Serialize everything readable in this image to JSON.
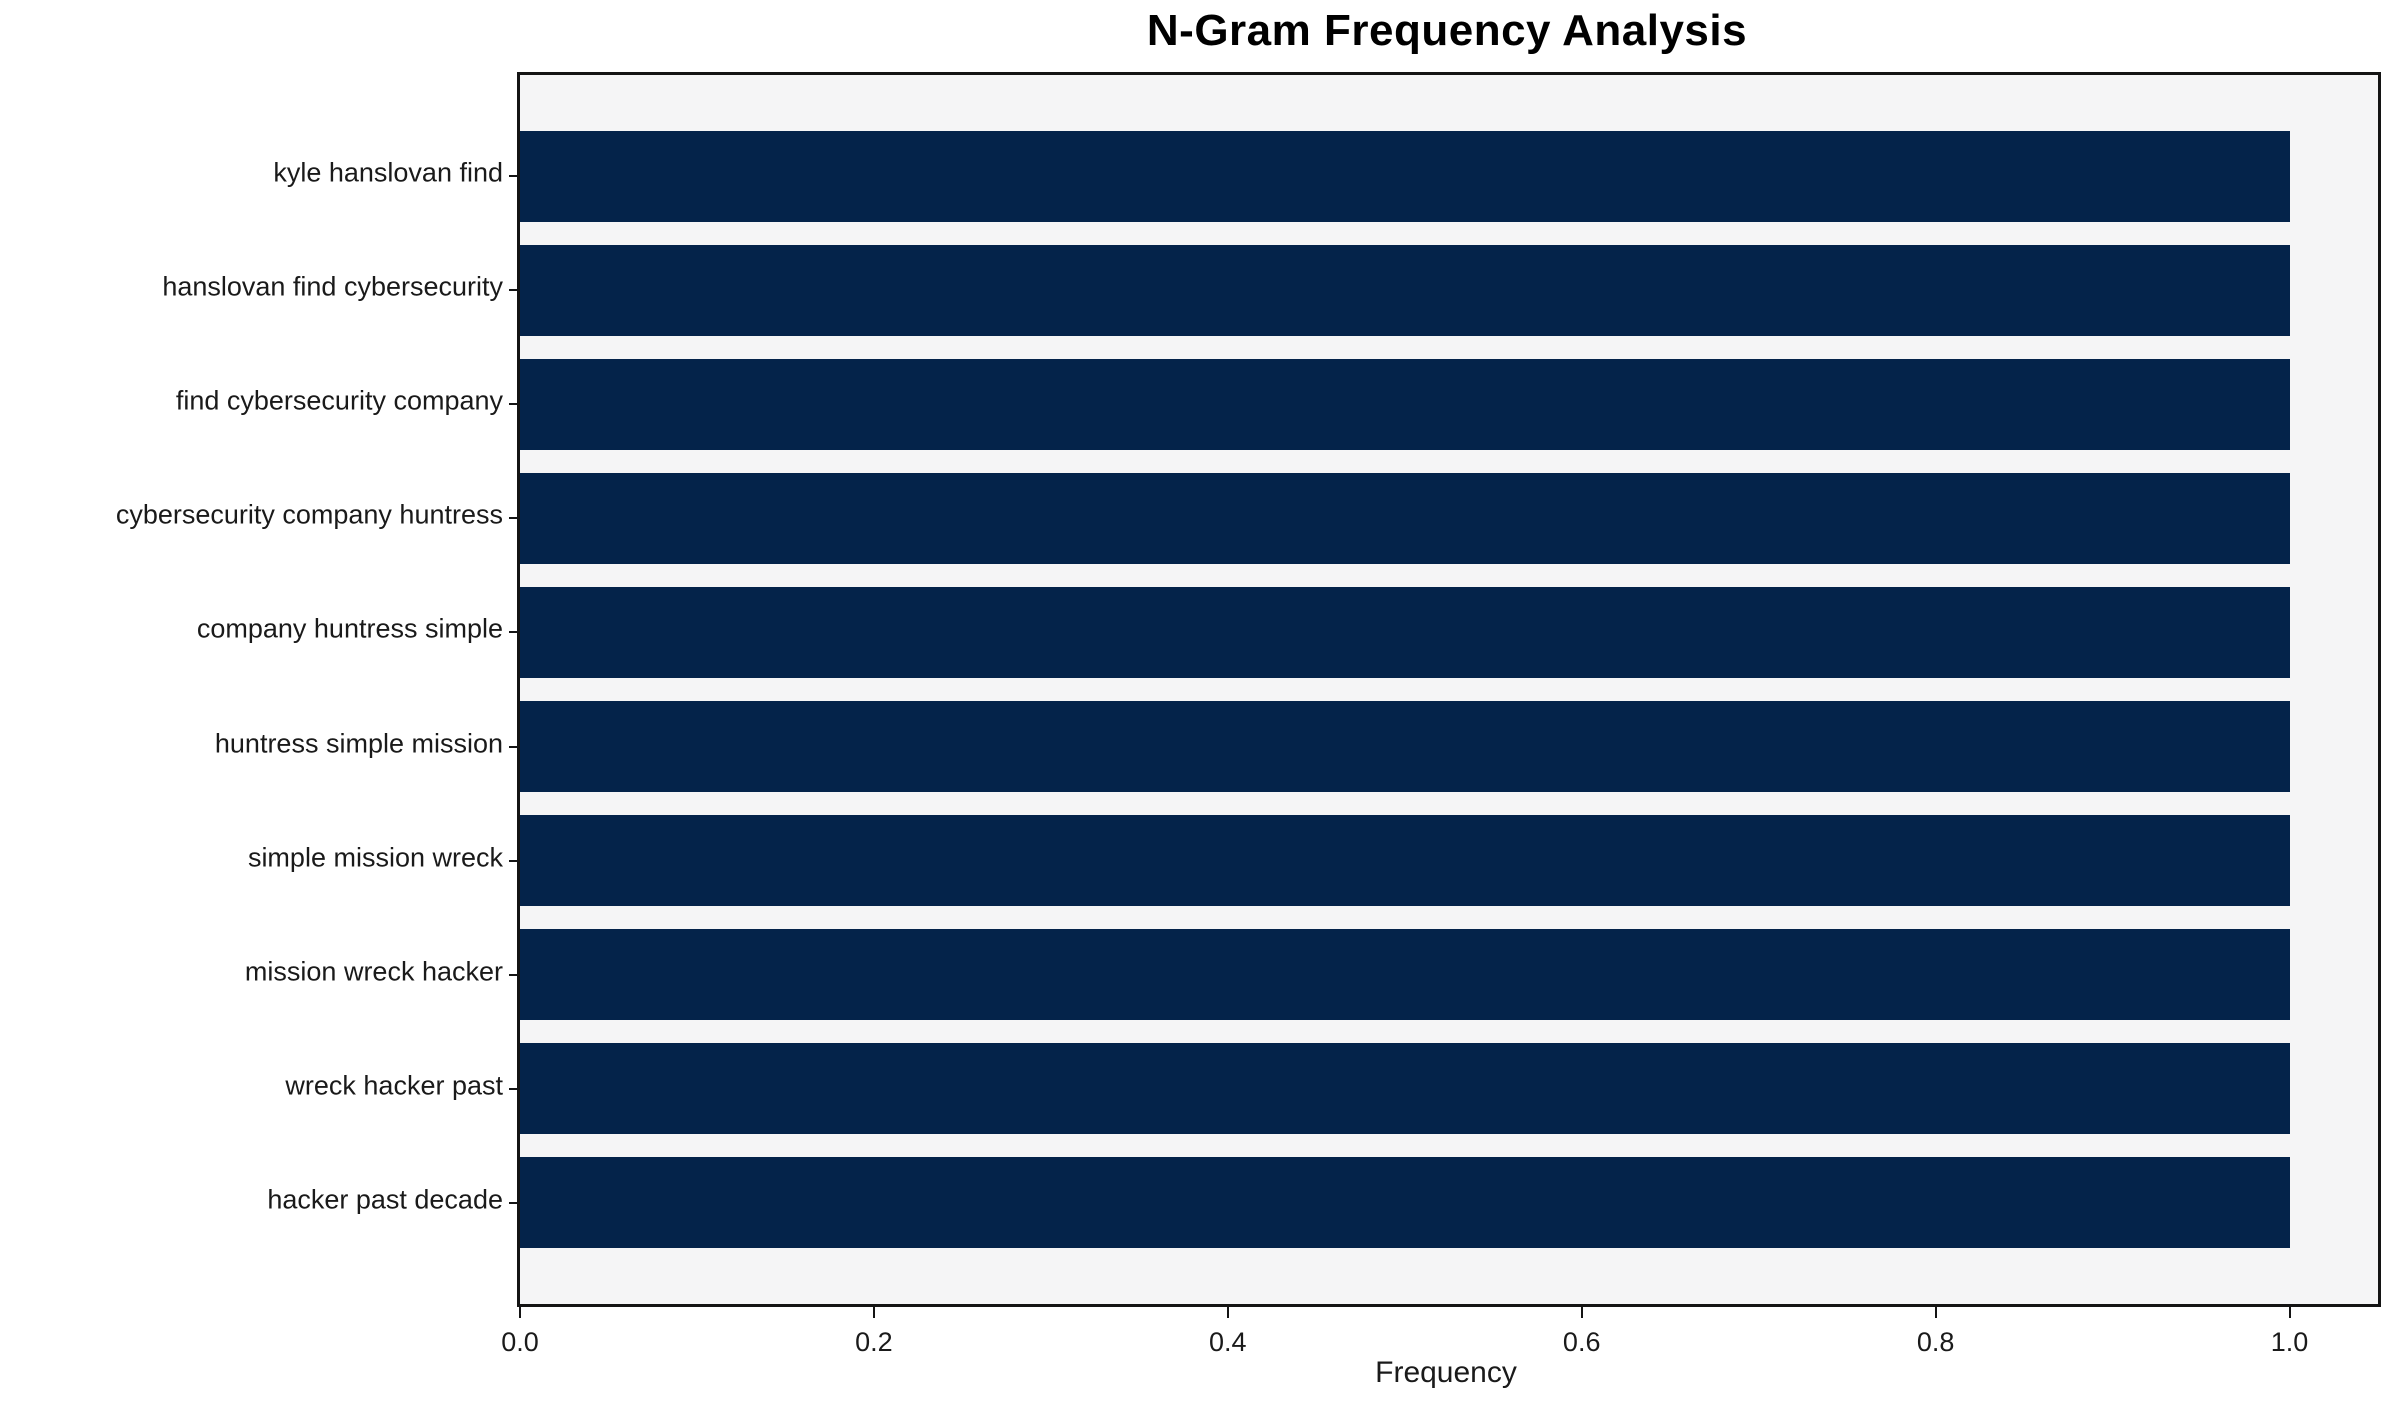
{
  "chart_data": {
    "type": "bar",
    "orientation": "horizontal",
    "title": "N-Gram Frequency Analysis",
    "xlabel": "Frequency",
    "ylabel": "",
    "categories": [
      "kyle hanslovan find",
      "hanslovan find cybersecurity",
      "find cybersecurity company",
      "cybersecurity company huntress",
      "company huntress simple",
      "huntress simple mission",
      "simple mission wreck",
      "mission wreck hacker",
      "wreck hacker past",
      "hacker past decade"
    ],
    "values": [
      1.0,
      1.0,
      1.0,
      1.0,
      1.0,
      1.0,
      1.0,
      1.0,
      1.0,
      1.0
    ],
    "xlim": [
      0,
      1.05
    ],
    "xticks": [
      0.0,
      0.2,
      0.4,
      0.6,
      0.8,
      1.0
    ],
    "xtick_labels": [
      "0.0",
      "0.2",
      "0.4",
      "0.6",
      "0.8",
      "1.0"
    ],
    "grid": false,
    "legend": null,
    "bar_color": "#04234a",
    "plot_background": "#f5f5f6",
    "figure_background": "#ffffff"
  }
}
